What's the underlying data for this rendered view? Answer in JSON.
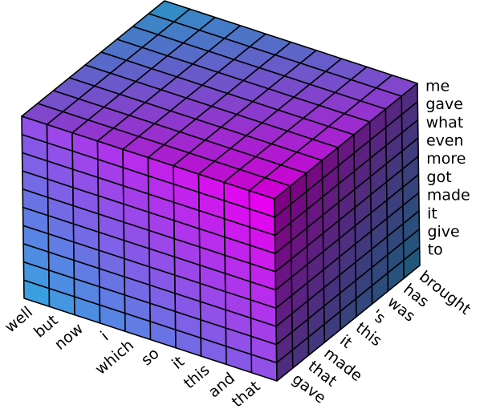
{
  "chart_data": {
    "type": "voxels",
    "x_categories": [
      "well",
      "but",
      "now",
      "i",
      "which",
      "so",
      "it",
      "this",
      "and",
      "that"
    ],
    "y_categories": [
      "gave",
      "that",
      "made",
      "it",
      "this",
      "'s",
      "was",
      "has",
      "brought"
    ],
    "z_categories": [
      "to",
      "give",
      "it",
      "made",
      "got",
      "more",
      "even",
      "what",
      "gave",
      "me"
    ],
    "colors": [
      "#3a9fe0",
      "#e800f0"
    ]
  }
}
